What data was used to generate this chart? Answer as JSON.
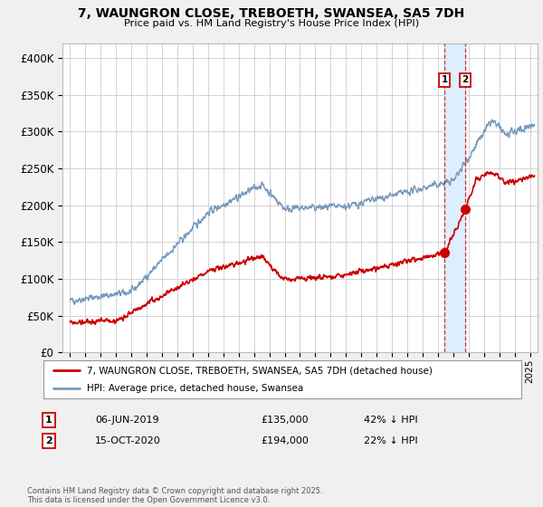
{
  "title": "7, WAUNGRON CLOSE, TREBOETH, SWANSEA, SA5 7DH",
  "subtitle": "Price paid vs. HM Land Registry's House Price Index (HPI)",
  "legend_label_red": "7, WAUNGRON CLOSE, TREBOETH, SWANSEA, SA5 7DH (detached house)",
  "legend_label_blue": "HPI: Average price, detached house, Swansea",
  "footer": "Contains HM Land Registry data © Crown copyright and database right 2025.\nThis data is licensed under the Open Government Licence v3.0.",
  "transaction1_label": "1",
  "transaction1_date": "06-JUN-2019",
  "transaction1_price": "£135,000",
  "transaction1_hpi": "42% ↓ HPI",
  "transaction2_label": "2",
  "transaction2_date": "15-OCT-2020",
  "transaction2_price": "£194,000",
  "transaction2_hpi": "22% ↓ HPI",
  "vline1_x": 2019.44,
  "vline2_x": 2020.79,
  "marker1_red_x": 2019.44,
  "marker1_red_y": 135000,
  "marker2_red_x": 2020.79,
  "marker2_red_y": 194000,
  "ylim": [
    0,
    420000
  ],
  "xlim": [
    1994.5,
    2025.5
  ],
  "background_color": "#f0f0f0",
  "plot_background_color": "#ffffff",
  "red_color": "#cc0000",
  "blue_color": "#7799bb",
  "grid_color": "#cccccc",
  "vband_color": "#ddeeff"
}
